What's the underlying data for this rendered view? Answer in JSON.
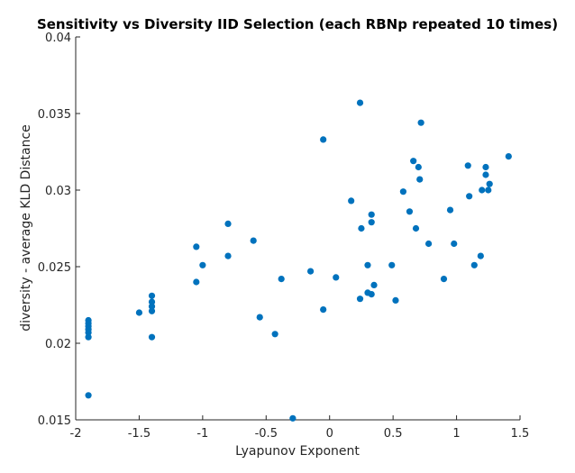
{
  "chart_data": {
    "type": "scatter",
    "title": "Sensitivity vs Diversity IID Selection (each RBNp repeated 10 times)",
    "xlabel": "Lyapunov Exponent",
    "ylabel": "diversity - average KLD Distance",
    "xlim": [
      -2,
      1.5
    ],
    "ylim": [
      0.015,
      0.04
    ],
    "xticks": [
      -2,
      -1.5,
      -1,
      -0.5,
      0,
      0.5,
      1,
      1.5
    ],
    "xtick_labels": [
      "-2",
      "-1.5",
      "-1",
      "-0.5",
      "0",
      "0.5",
      "1",
      "1.5"
    ],
    "yticks": [
      0.015,
      0.02,
      0.025,
      0.03,
      0.035,
      0.04
    ],
    "ytick_labels": [
      "0.015",
      "0.02",
      "0.025",
      "0.03",
      "0.035",
      "0.04"
    ],
    "grid": false,
    "marker_color": "#0072BD",
    "points": [
      {
        "x": -1.9,
        "y": 0.0166
      },
      {
        "x": -1.9,
        "y": 0.0204
      },
      {
        "x": -1.9,
        "y": 0.0207
      },
      {
        "x": -1.9,
        "y": 0.0209
      },
      {
        "x": -1.9,
        "y": 0.0211
      },
      {
        "x": -1.9,
        "y": 0.0213
      },
      {
        "x": -1.9,
        "y": 0.0215
      },
      {
        "x": -1.5,
        "y": 0.022
      },
      {
        "x": -1.4,
        "y": 0.0204
      },
      {
        "x": -1.4,
        "y": 0.0221
      },
      {
        "x": -1.4,
        "y": 0.0224
      },
      {
        "x": -1.4,
        "y": 0.0227
      },
      {
        "x": -1.4,
        "y": 0.0231
      },
      {
        "x": -1.05,
        "y": 0.024
      },
      {
        "x": -1.05,
        "y": 0.0263
      },
      {
        "x": -1.0,
        "y": 0.0251
      },
      {
        "x": -0.8,
        "y": 0.0257
      },
      {
        "x": -0.8,
        "y": 0.0278
      },
      {
        "x": -0.6,
        "y": 0.0267
      },
      {
        "x": -0.55,
        "y": 0.0217
      },
      {
        "x": -0.43,
        "y": 0.0206
      },
      {
        "x": -0.38,
        "y": 0.0242
      },
      {
        "x": -0.29,
        "y": 0.0151
      },
      {
        "x": -0.15,
        "y": 0.0247
      },
      {
        "x": -0.05,
        "y": 0.0222
      },
      {
        "x": -0.05,
        "y": 0.0333
      },
      {
        "x": 0.05,
        "y": 0.0243
      },
      {
        "x": 0.17,
        "y": 0.0293
      },
      {
        "x": 0.24,
        "y": 0.0229
      },
      {
        "x": 0.24,
        "y": 0.0357
      },
      {
        "x": 0.25,
        "y": 0.0275
      },
      {
        "x": 0.3,
        "y": 0.0233
      },
      {
        "x": 0.3,
        "y": 0.0251
      },
      {
        "x": 0.33,
        "y": 0.0232
      },
      {
        "x": 0.33,
        "y": 0.0279
      },
      {
        "x": 0.33,
        "y": 0.0284
      },
      {
        "x": 0.35,
        "y": 0.0238
      },
      {
        "x": 0.49,
        "y": 0.0251
      },
      {
        "x": 0.52,
        "y": 0.0228
      },
      {
        "x": 0.58,
        "y": 0.0299
      },
      {
        "x": 0.63,
        "y": 0.0286
      },
      {
        "x": 0.66,
        "y": 0.0319
      },
      {
        "x": 0.68,
        "y": 0.0275
      },
      {
        "x": 0.7,
        "y": 0.0315
      },
      {
        "x": 0.71,
        "y": 0.0307
      },
      {
        "x": 0.72,
        "y": 0.0344
      },
      {
        "x": 0.78,
        "y": 0.0265
      },
      {
        "x": 0.9,
        "y": 0.0242
      },
      {
        "x": 0.95,
        "y": 0.0287
      },
      {
        "x": 0.98,
        "y": 0.0265
      },
      {
        "x": 1.09,
        "y": 0.0316
      },
      {
        "x": 1.1,
        "y": 0.0296
      },
      {
        "x": 1.14,
        "y": 0.0251
      },
      {
        "x": 1.19,
        "y": 0.0257
      },
      {
        "x": 1.2,
        "y": 0.03
      },
      {
        "x": 1.23,
        "y": 0.0315
      },
      {
        "x": 1.23,
        "y": 0.031
      },
      {
        "x": 1.25,
        "y": 0.03
      },
      {
        "x": 1.26,
        "y": 0.0304
      },
      {
        "x": 1.41,
        "y": 0.0322
      }
    ]
  }
}
